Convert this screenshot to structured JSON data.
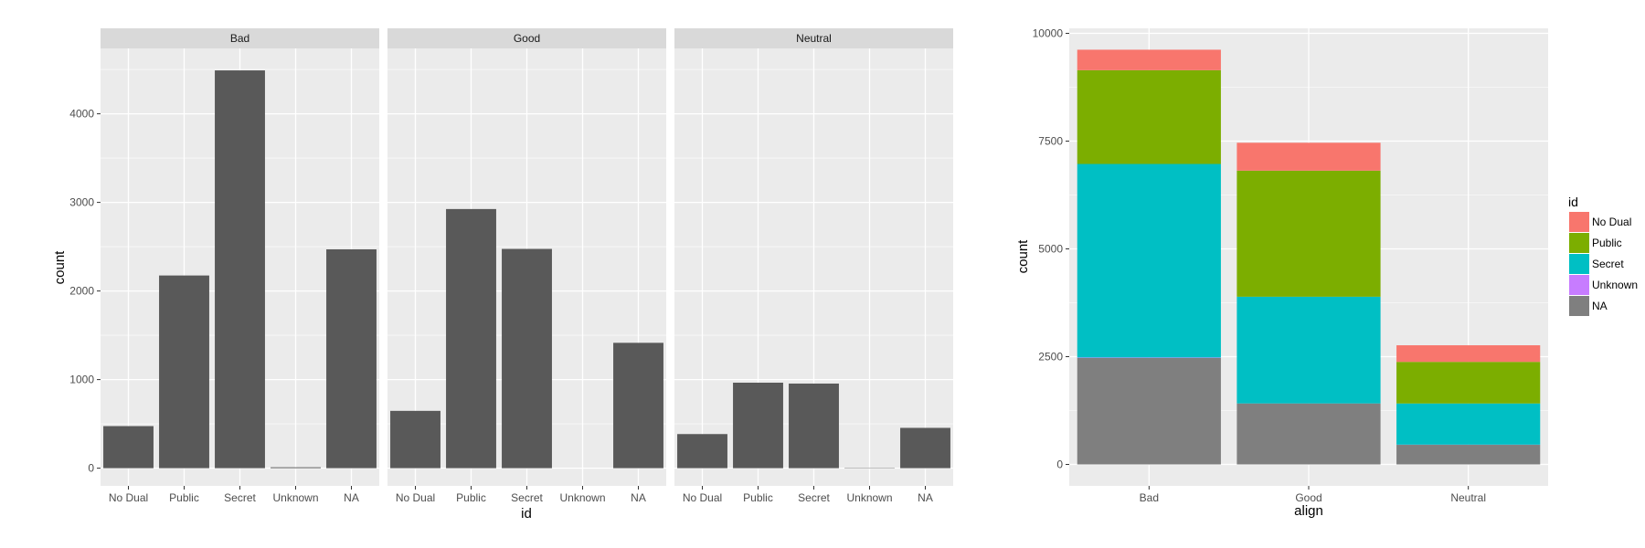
{
  "chart_data": [
    {
      "type": "bar",
      "facet_by": "align",
      "panels": [
        {
          "strip": "Bad",
          "values": [
            475,
            2175,
            4490,
            10,
            2470
          ]
        },
        {
          "strip": "Good",
          "values": [
            647,
            2925,
            2475,
            0,
            1415
          ]
        },
        {
          "strip": "Neutral",
          "values": [
            385,
            965,
            955,
            4,
            455
          ]
        }
      ],
      "categories": [
        "No Dual",
        "Public",
        "Secret",
        "Unknown",
        "NA"
      ],
      "xlabel": "id",
      "ylabel": "count",
      "ylim": [
        0,
        4800
      ],
      "yticks": [
        0,
        1000,
        2000,
        3000,
        4000
      ],
      "bar_color": "#595959",
      "grid": true
    },
    {
      "type": "bar",
      "stacked": true,
      "categories": [
        "Bad",
        "Good",
        "Neutral"
      ],
      "series": [
        {
          "name": "No Dual",
          "color": "#F8766D",
          "values": [
            475,
            647,
            385
          ]
        },
        {
          "name": "Public",
          "color": "#7CAE00",
          "values": [
            2175,
            2925,
            965
          ]
        },
        {
          "name": "Secret",
          "color": "#00BFC4",
          "values": [
            4490,
            2475,
            955
          ]
        },
        {
          "name": "Unknown",
          "color": "#C77CFF",
          "values": [
            10,
            0,
            4
          ]
        },
        {
          "name": "NA",
          "color": "#7F7F7F",
          "values": [
            2470,
            1415,
            455
          ]
        }
      ],
      "xlabel": "align",
      "ylabel": "count",
      "ylim": [
        0,
        10000
      ],
      "yticks": [
        0,
        2500,
        5000,
        7500,
        10000
      ],
      "legend_title": "id",
      "legend_position": "right",
      "grid": true
    }
  ]
}
